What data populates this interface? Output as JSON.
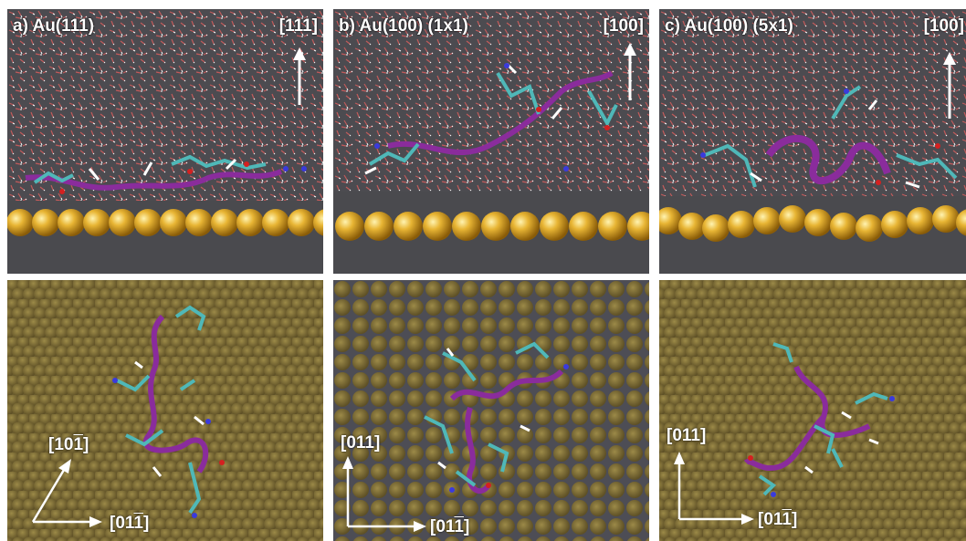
{
  "panels_top": [
    {
      "letter": "a)",
      "surface": "Au(111)",
      "direction": "[111]"
    },
    {
      "letter": "b)",
      "surface": "Au(100) (1x1)",
      "direction": "[100]"
    },
    {
      "letter": "c)",
      "surface": "Au(100) (5x1)",
      "direction": "[100]"
    }
  ],
  "panels_bottom": [
    {
      "axis_v_pre": "[10",
      "axis_v_bar": "1",
      "axis_v_post": "]",
      "axis_h_pre": "[01",
      "axis_h_bar": "1",
      "axis_h_post": "]"
    },
    {
      "axis_v_pre": "[011]",
      "axis_v_bar": "",
      "axis_v_post": "",
      "axis_h_pre": "[01",
      "axis_h_bar": "1",
      "axis_h_post": "]"
    },
    {
      "axis_v_pre": "[011]",
      "axis_v_bar": "",
      "axis_v_post": "",
      "axis_h_pre": "[01",
      "axis_h_bar": "1",
      "axis_h_post": "]"
    }
  ],
  "colors": {
    "background_gray": "#4a4a4e",
    "gold": "#e0a82a",
    "surface_olive": "#7a6a36",
    "peptide_purple": "#8a2c9c",
    "carbon_cyan": "#4fb8b8",
    "nitrogen_blue": "#3a3adc",
    "oxygen_red": "#d42020",
    "water_red": "#b04848"
  }
}
